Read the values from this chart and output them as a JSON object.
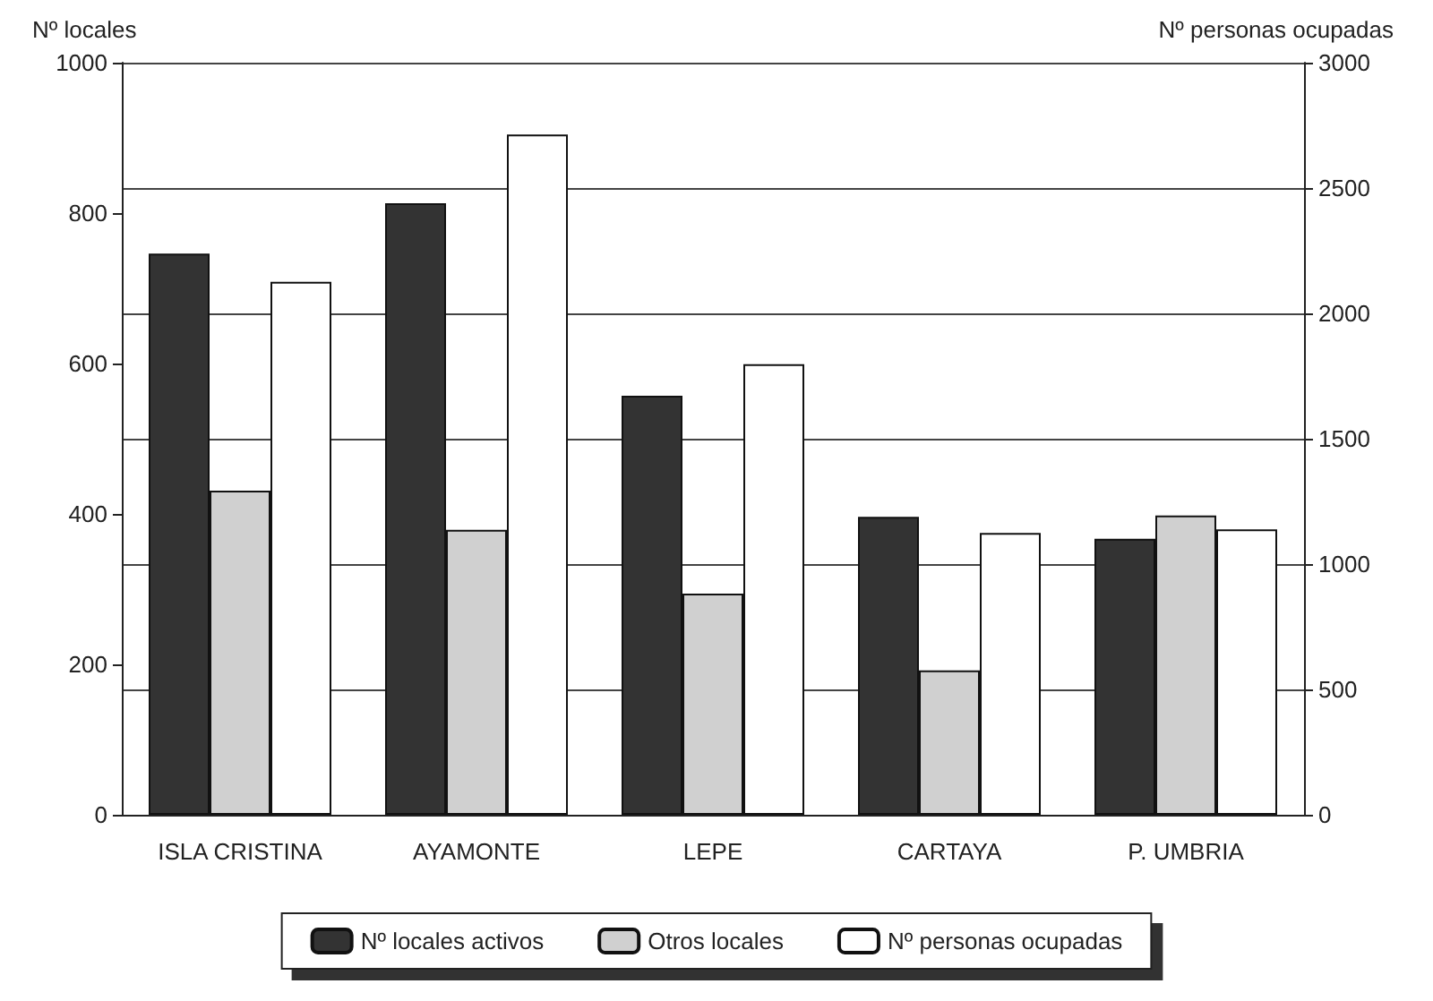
{
  "chart_data": {
    "type": "bar",
    "categories": [
      "ISLA CRISTINA",
      "AYAMONTE",
      "LEPE",
      "CARTAYA",
      "P. UMBRIA"
    ],
    "ylabel": "Nº locales",
    "y2label": "Nº personas ocupadas",
    "series": [
      {
        "name": "Nº locales activos",
        "color": "#333333",
        "values": [
          746,
          813,
          557,
          396,
          367
        ]
      },
      {
        "name": "Otros locales",
        "color": "#d0d0d0",
        "values": [
          431,
          379,
          294,
          192,
          398
        ]
      },
      {
        "name": "Nº personas ocupadas",
        "color": "#ffffff",
        "axis": "y2",
        "values": [
          2126,
          2713,
          1797,
          1124,
          1138
        ]
      }
    ],
    "ylim": [
      0,
      1000
    ],
    "yticks": [
      0,
      200,
      400,
      600,
      800,
      1000
    ],
    "y2lim": [
      0,
      3000
    ],
    "y2ticks": [
      0,
      500,
      1000,
      1500,
      2000,
      2500,
      3000
    ],
    "grid": true,
    "legend": "bottom"
  }
}
